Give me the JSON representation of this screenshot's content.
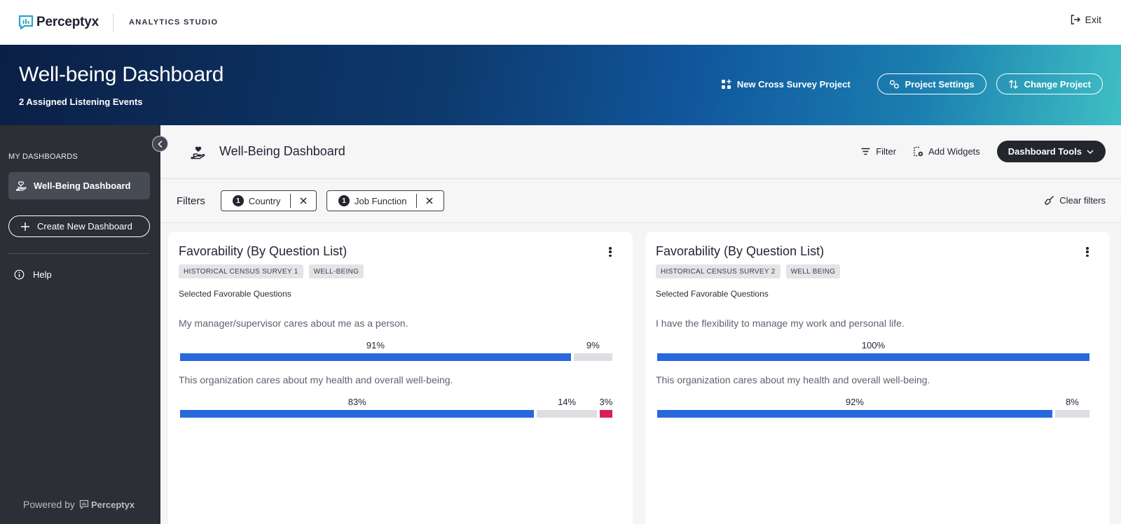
{
  "app": {
    "brand": "Perceptyx",
    "studio": "ANALYTICS STUDIO",
    "exit_label": "Exit"
  },
  "hero": {
    "title": "Well-being Dashboard",
    "subtitle": "2 Assigned Listening Events",
    "new_cross_label": "New Cross Survey Project",
    "project_settings_label": "Project Settings",
    "change_project_label": "Change Project"
  },
  "sidebar": {
    "section_title": "MY DASHBOARDS",
    "active_item": "Well-Being Dashboard",
    "create_label": "Create New Dashboard",
    "help_label": "Help",
    "powered_by": "Powered by",
    "powered_brand": "Perceptyx"
  },
  "dashboard": {
    "title": "Well-Being Dashboard",
    "filter_label": "Filter",
    "add_widgets_label": "Add Widgets",
    "tools_label": "Dashboard Tools"
  },
  "filters": {
    "label": "Filters",
    "chips": [
      {
        "count": "1",
        "label": "Country"
      },
      {
        "count": "1",
        "label": "Job Function"
      }
    ],
    "clear_label": "Clear filters"
  },
  "colors": {
    "favorable": "#2868dc",
    "neutral": "#dddee2",
    "unfavorable": "#d81f5a"
  },
  "cards": [
    {
      "title": "Favorability (By Question List)",
      "tags": [
        "HISTORICAL CENSUS SURVEY 1",
        "WELL-BEING"
      ],
      "subtitle": "Selected Favorable Questions",
      "questions": [
        {
          "text": "My manager/supervisor cares about me as a person.",
          "segments": [
            {
              "kind": "favorable",
              "value": 91,
              "label": "91%"
            },
            {
              "kind": "neutral",
              "value": 9,
              "label": "9%"
            }
          ]
        },
        {
          "text": "This organization cares about my health and overall well-being.",
          "segments": [
            {
              "kind": "favorable",
              "value": 83,
              "label": "83%"
            },
            {
              "kind": "neutral",
              "value": 14,
              "label": "14%"
            },
            {
              "kind": "unfavorable",
              "value": 3,
              "label": "3%"
            }
          ]
        }
      ]
    },
    {
      "title": "Favorability (By Question List)",
      "tags": [
        "HISTORICAL CENSUS SURVEY 2",
        "WELL BEING"
      ],
      "subtitle": "Selected Favorable Questions",
      "questions": [
        {
          "text": "I have the flexibility to manage my work and personal life.",
          "segments": [
            {
              "kind": "favorable",
              "value": 100,
              "label": "100%"
            }
          ]
        },
        {
          "text": "This organization cares about my health and overall well-being.",
          "segments": [
            {
              "kind": "favorable",
              "value": 92,
              "label": "92%"
            },
            {
              "kind": "neutral",
              "value": 8,
              "label": "8%"
            }
          ]
        }
      ]
    }
  ]
}
